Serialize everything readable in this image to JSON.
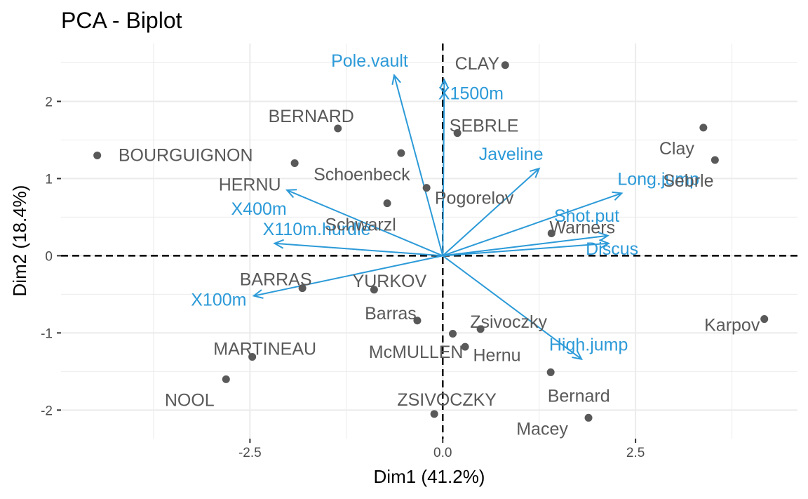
{
  "chart_data": {
    "type": "scatter",
    "title": "PCA - Biplot",
    "xlabel": "Dim1 (41.2%)",
    "ylabel": "Dim2 (18.4%)",
    "xlim": [
      -4.95,
      4.6
    ],
    "ylim": [
      -2.37,
      2.75
    ],
    "xticks": [
      -2.5,
      0,
      2.5
    ],
    "xtick_labels": [
      "-2.5",
      "0.0",
      "2.5"
    ],
    "yticks": [
      -2,
      -1,
      0,
      1,
      2
    ],
    "ytick_labels": [
      "-2",
      "-1",
      "0",
      "1",
      "2"
    ],
    "grid": true,
    "colors": {
      "individuals": "#595959",
      "variables": "#2c9ad8",
      "grid": "#ebebeb"
    },
    "individuals": [
      {
        "name": "SEBRLE",
        "x": 0.19,
        "y": 1.59
      },
      {
        "name": "CLAY",
        "x": 0.81,
        "y": 2.47
      },
      {
        "name": "BERNARD",
        "x": -1.36,
        "y": 1.65
      },
      {
        "name": "YURKOV",
        "x": -0.89,
        "y": -0.44
      },
      {
        "name": "ZSIVOCZKY",
        "x": -0.11,
        "y": -2.05
      },
      {
        "name": "McMULLEN",
        "x": 0.29,
        "y": -1.18
      },
      {
        "name": "MARTINEAU",
        "x": -2.47,
        "y": -1.31
      },
      {
        "name": "HERNU",
        "x": -1.92,
        "y": 1.2
      },
      {
        "name": "BARRAS",
        "x": -1.82,
        "y": -0.42
      },
      {
        "name": "NOOL",
        "x": -2.81,
        "y": -1.6
      },
      {
        "name": "BOURGUIGNON",
        "x": -4.48,
        "y": 1.3
      },
      {
        "name": "Sebrle",
        "x": 3.53,
        "y": 1.24
      },
      {
        "name": "Clay",
        "x": 3.38,
        "y": 1.66
      },
      {
        "name": "Karpov",
        "x": 4.17,
        "y": -0.82
      },
      {
        "name": "Macey",
        "x": 1.89,
        "y": -2.1
      },
      {
        "name": "Warners",
        "x": 1.41,
        "y": 0.29
      },
      {
        "name": "Zsivoczky",
        "x": 0.49,
        "y": -0.95
      },
      {
        "name": "Hernu",
        "x": 0.13,
        "y": -1.01
      },
      {
        "name": "Bernard",
        "x": 1.4,
        "y": -1.51
      },
      {
        "name": "Schwarzl",
        "x": -0.72,
        "y": 0.68
      },
      {
        "name": "Pogorelov",
        "x": -0.21,
        "y": 0.88
      },
      {
        "name": "Schoenbeck",
        "x": -0.54,
        "y": 1.33
      },
      {
        "name": "Barras",
        "x": -0.33,
        "y": -0.84
      }
    ],
    "variables": [
      {
        "name": "X100m",
        "x": -2.45,
        "y": -0.52
      },
      {
        "name": "Long.jump",
        "x": 2.32,
        "y": 0.81
      },
      {
        "name": "Shot.put",
        "x": 2.14,
        "y": 0.26
      },
      {
        "name": "High.jump",
        "x": 1.8,
        "y": -1.34
      },
      {
        "name": "X400m",
        "x": -2.02,
        "y": 0.85
      },
      {
        "name": "X110m.hurdle",
        "x": -2.18,
        "y": 0.16
      },
      {
        "name": "Discus",
        "x": 2.15,
        "y": 0.16
      },
      {
        "name": "Pole.vault",
        "x": -0.63,
        "y": 2.34
      },
      {
        "name": "Javeline",
        "x": 1.25,
        "y": 1.13
      },
      {
        "name": "X1500m",
        "x": 0.02,
        "y": 2.28
      }
    ]
  }
}
